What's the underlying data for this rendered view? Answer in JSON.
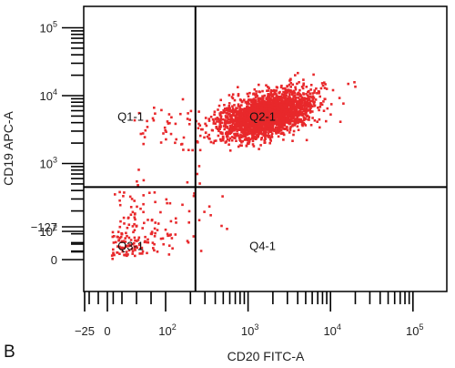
{
  "panel_label": "B",
  "chart_data": {
    "type": "scatter",
    "xlabel": "CD20 FITC-A",
    "ylabel": "CD19 APC-A",
    "x_scale": "biexponential",
    "y_scale": "biexponential",
    "x_ticks": [
      {
        "value": -25,
        "base": "−25",
        "exp": ""
      },
      {
        "value": 0,
        "base": "0",
        "exp": ""
      },
      {
        "value": 100,
        "base": "10",
        "exp": "2"
      },
      {
        "value": 1000,
        "base": "10",
        "exp": "3"
      },
      {
        "value": 10000,
        "base": "10",
        "exp": "4"
      },
      {
        "value": 100000,
        "base": "10",
        "exp": "5"
      }
    ],
    "y_ticks": [
      {
        "value": -127,
        "base": "−127",
        "exp": ""
      },
      {
        "value": 0,
        "base": "0",
        "exp": ""
      },
      {
        "value": 100,
        "base": "10",
        "exp": "2"
      },
      {
        "value": 1000,
        "base": "10",
        "exp": "3"
      },
      {
        "value": 10000,
        "base": "10",
        "exp": "4"
      },
      {
        "value": 100000,
        "base": "10",
        "exp": "5"
      }
    ],
    "quadrant_gate": {
      "x": 230,
      "y": 450
    },
    "quadrants": [
      {
        "label": "Q1-1",
        "x": 40,
        "y": 5000
      },
      {
        "label": "Q2-1",
        "x": 1500,
        "y": 5000
      },
      {
        "label": "Q3-1",
        "x": 40,
        "y": 50
      },
      {
        "label": "Q4-1",
        "x": 1500,
        "y": 50
      }
    ],
    "point_color": "#e8282b",
    "populations": [
      {
        "name": "",
        "count": 2600,
        "x_center": 1700,
        "y_center": 5200,
        "x_spread_decades": 0.28,
        "y_spread_decades": 0.17
      },
      {
        "name": "",
        "count": 45,
        "x_center": 140,
        "y_center": 3600,
        "x_spread_decades": 0.22,
        "y_spread_decades": 0.18
      },
      {
        "name": "",
        "count": 190,
        "x_center": 55,
        "y_center": 100,
        "x_spread_decades": 0.35,
        "y_spread_decades": 0.45
      }
    ]
  }
}
